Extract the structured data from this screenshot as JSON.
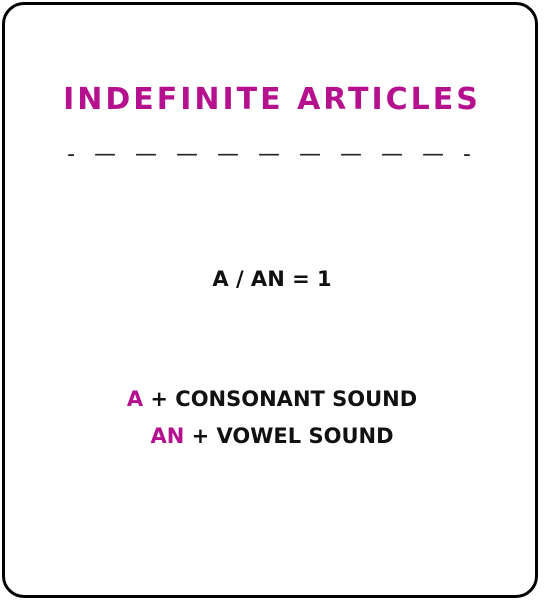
{
  "card": {
    "title": "INDEFINITE ARTICLES",
    "divider": "- — — — — — — — — — -",
    "equation": "A / AN = 1",
    "rules": [
      {
        "article": "A",
        "text": " + CONSONANT SOUND"
      },
      {
        "article": "AN",
        "text": " + VOWEL SOUND"
      }
    ]
  },
  "colors": {
    "accent": "#b5108e",
    "text": "#111111",
    "border": "#000000"
  }
}
